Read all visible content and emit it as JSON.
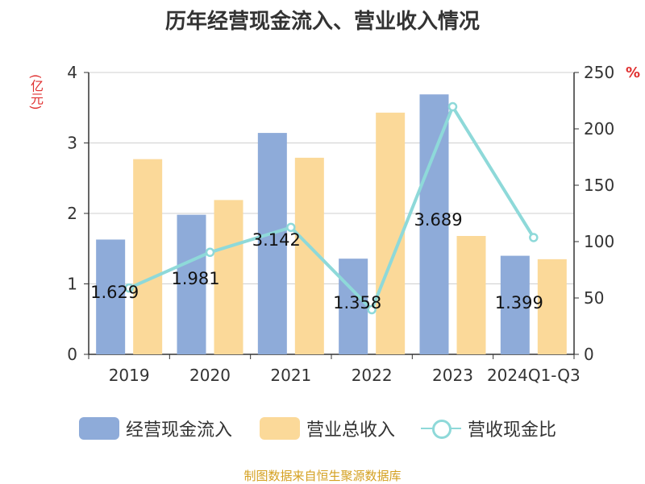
{
  "chart_data": {
    "type": "bar",
    "title": "历年经营现金流入、营业收入情况",
    "left_axis_unit": "(亿元)",
    "right_axis_unit": "%",
    "categories": [
      "2019",
      "2020",
      "2021",
      "2022",
      "2023",
      "2024Q1-Q3"
    ],
    "series": [
      {
        "name": "经营现金流入",
        "kind": "bar",
        "axis": "left",
        "color": "#8eabd9",
        "values": [
          1.629,
          1.981,
          3.142,
          1.358,
          3.689,
          1.399
        ]
      },
      {
        "name": "营业总收入",
        "kind": "bar",
        "axis": "left",
        "color": "#fbd999",
        "values": [
          2.77,
          2.19,
          2.79,
          3.43,
          1.68,
          1.35
        ]
      },
      {
        "name": "营收现金比",
        "kind": "line",
        "axis": "right",
        "color": "#8ed9d9",
        "values": [
          58.8,
          90.5,
          112.6,
          39.6,
          219.6,
          103.6
        ]
      }
    ],
    "data_labels": [
      "1.629",
      "1.981",
      "3.142",
      "1.358",
      "3.689",
      "1.399"
    ],
    "ylim_left": [
      0,
      4
    ],
    "yticks_left": [
      "0",
      "1",
      "2",
      "3",
      "4"
    ],
    "ylim_right": [
      0,
      250
    ],
    "yticks_right": [
      "0",
      "50",
      "100",
      "150",
      "200",
      "250"
    ],
    "grid": true,
    "legend_position": "bottom"
  },
  "source_text": "制图数据来自恒生聚源数据库"
}
